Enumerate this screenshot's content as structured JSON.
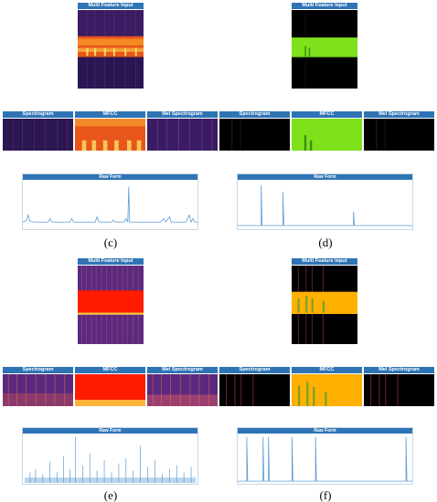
{
  "labels": {
    "multi": "Multi Feature Input",
    "spec": "Spectrogram",
    "mfcc": "MFCC",
    "mel": "Mel Spectrogram",
    "raw": "Raw Form"
  },
  "captions": {
    "c": "(c)",
    "d": "(d)",
    "e": "(e)",
    "f": "(f)"
  },
  "colors": {
    "title_bar": "#2e74b5",
    "raw_line": "#5b9bd5",
    "magma_dark": "#1a0f3d",
    "magma_purple": "#5b2a7e",
    "magma_orange": "#f07a1a",
    "green_band": "#7fe01c",
    "red_band": "#ff1c00",
    "amber_band": "#ffb000",
    "black_bg": "#000000"
  }
}
